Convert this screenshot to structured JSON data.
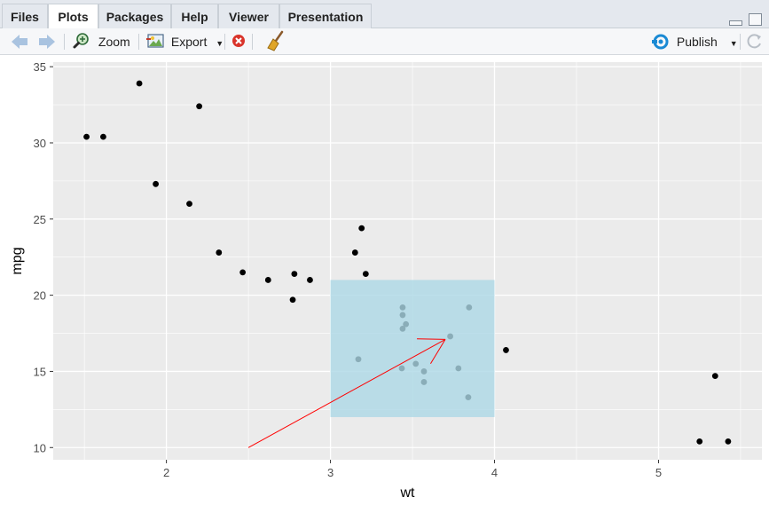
{
  "tabs": [
    {
      "label": "Files"
    },
    {
      "label": "Plots"
    },
    {
      "label": "Packages"
    },
    {
      "label": "Help"
    },
    {
      "label": "Viewer"
    },
    {
      "label": "Presentation"
    }
  ],
  "toolbar": {
    "zoom_label": "Zoom",
    "export_label": "Export",
    "publish_label": "Publish"
  },
  "colors": {
    "panel_bg": "#ebebeb",
    "grid": "#ffffff",
    "points": "#000000",
    "highlight_rect": "#add8e6",
    "arrow": "#ff0000",
    "publish_icon": "#1a8ad4"
  },
  "chart_data": {
    "type": "scatter",
    "xlabel": "wt",
    "ylabel": "mpg",
    "xlim": [
      1.31,
      5.63
    ],
    "ylim": [
      9.2,
      35.3
    ],
    "xticks": [
      2,
      3,
      4,
      5
    ],
    "yticks": [
      10,
      15,
      20,
      25,
      30,
      35
    ],
    "grid": true,
    "points": [
      {
        "x": 2.62,
        "y": 21.0
      },
      {
        "x": 2.875,
        "y": 21.0
      },
      {
        "x": 2.32,
        "y": 22.8
      },
      {
        "x": 3.215,
        "y": 21.4
      },
      {
        "x": 3.44,
        "y": 18.7
      },
      {
        "x": 3.46,
        "y": 18.1
      },
      {
        "x": 3.57,
        "y": 14.3
      },
      {
        "x": 3.19,
        "y": 24.4
      },
      {
        "x": 3.15,
        "y": 22.8
      },
      {
        "x": 3.44,
        "y": 19.2
      },
      {
        "x": 3.44,
        "y": 17.8
      },
      {
        "x": 4.07,
        "y": 16.4
      },
      {
        "x": 3.73,
        "y": 17.3
      },
      {
        "x": 3.78,
        "y": 15.2
      },
      {
        "x": 5.25,
        "y": 10.4
      },
      {
        "x": 5.424,
        "y": 10.4
      },
      {
        "x": 5.345,
        "y": 14.7
      },
      {
        "x": 2.2,
        "y": 32.4
      },
      {
        "x": 1.615,
        "y": 30.4
      },
      {
        "x": 1.835,
        "y": 33.9
      },
      {
        "x": 2.465,
        "y": 21.5
      },
      {
        "x": 3.52,
        "y": 15.5
      },
      {
        "x": 3.435,
        "y": 15.2
      },
      {
        "x": 3.84,
        "y": 13.3
      },
      {
        "x": 3.845,
        "y": 19.2
      },
      {
        "x": 1.935,
        "y": 27.3
      },
      {
        "x": 2.14,
        "y": 26.0
      },
      {
        "x": 1.513,
        "y": 30.4
      },
      {
        "x": 3.17,
        "y": 15.8
      },
      {
        "x": 2.77,
        "y": 19.7
      },
      {
        "x": 3.57,
        "y": 15.0
      },
      {
        "x": 2.78,
        "y": 21.4
      }
    ],
    "annotations": [
      {
        "type": "rect",
        "xmin": 3,
        "xmax": 4,
        "ymin": 12,
        "ymax": 21,
        "fill": "#add8e6",
        "alpha": 0.8
      },
      {
        "type": "segment",
        "x": 2.5,
        "y": 10,
        "xend": 3.7,
        "yend": 17.1,
        "arrow": true,
        "color": "#ff0000"
      }
    ]
  }
}
